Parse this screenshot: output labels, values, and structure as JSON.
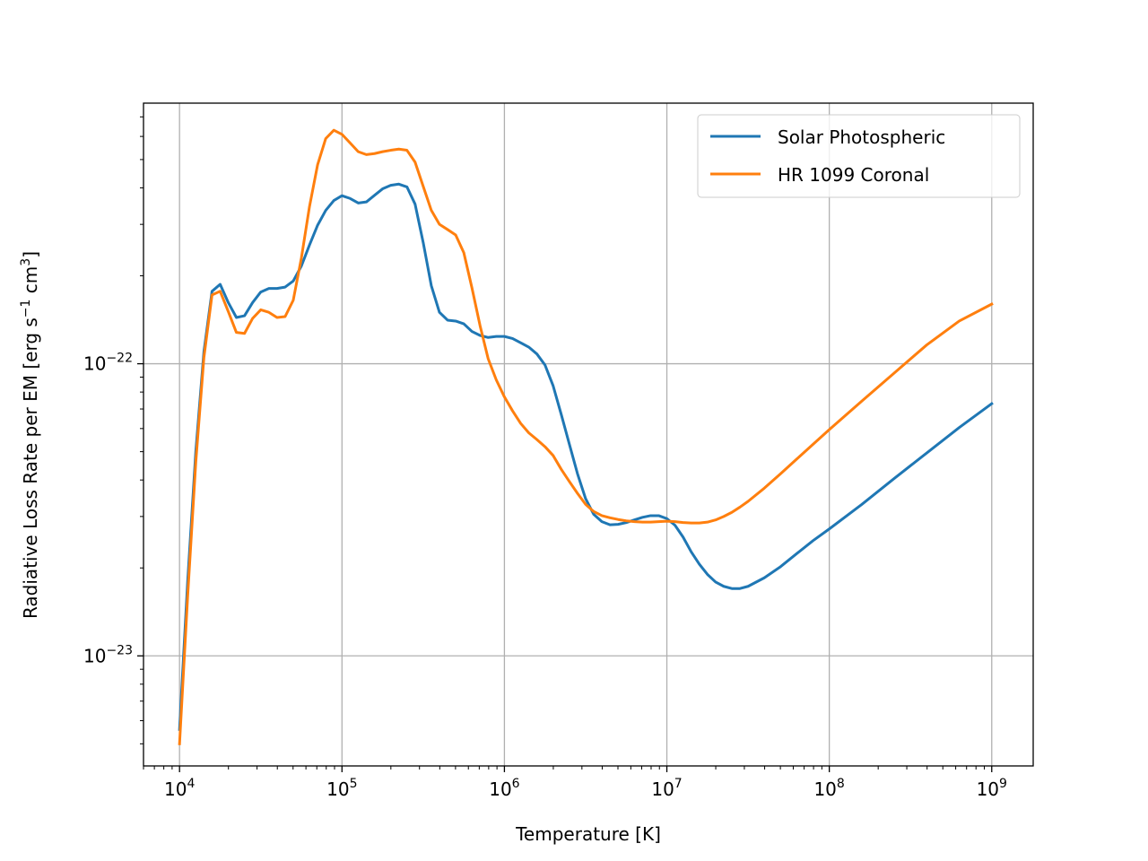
{
  "chart_data": {
    "type": "line",
    "xlabel": "Temperature [K]",
    "ylabel": {
      "main": "Radiative Loss Rate per EM [erg s",
      "exp1": "−1",
      "mid": " cm",
      "exp2": "3",
      "end": "]"
    },
    "x_scale": "log",
    "y_scale": "log",
    "xlim": [
      6000,
      1800000000
    ],
    "ylim": [
      4.2e-24,
      7.8e-22
    ],
    "grid": true,
    "legend_position": "top-right",
    "x_ticks": [
      {
        "value": 10000,
        "base": "10",
        "exp": "4"
      },
      {
        "value": 100000,
        "base": "10",
        "exp": "5"
      },
      {
        "value": 1000000,
        "base": "10",
        "exp": "6"
      },
      {
        "value": 10000000,
        "base": "10",
        "exp": "7"
      },
      {
        "value": 100000000,
        "base": "10",
        "exp": "8"
      },
      {
        "value": 1000000000,
        "base": "10",
        "exp": "9"
      }
    ],
    "y_ticks": [
      {
        "value": 1e-22,
        "base": "10",
        "exp": "−22"
      },
      {
        "value": 1e-23,
        "base": "10",
        "exp": "−23"
      }
    ],
    "series": [
      {
        "name": "Solar Photospheric",
        "color": "#1f77b4",
        "x": [
          10000,
          11220,
          12589,
          14125,
          15849,
          17783,
          19953,
          22387,
          25119,
          28184,
          31623,
          35481,
          39811,
          44668,
          50119,
          56234,
          63096,
          70795,
          79433,
          89125,
          100000,
          112202,
          125893,
          141254,
          158489,
          177828,
          199526,
          223872,
          251189,
          281838,
          316228,
          354813,
          398107,
          446684,
          501187,
          562341,
          630957,
          707946,
          794328,
          891251,
          1000000,
          1122018,
          1258925,
          1412538,
          1584893,
          1778279,
          1995262,
          2238721,
          2511886,
          2818383,
          3162278,
          3548134,
          3981072,
          4466836,
          5011872,
          5623413,
          6309573,
          7079458,
          7943282,
          8912509,
          10000000,
          11220185,
          12589254,
          14125375,
          15848932,
          17782794,
          19952623,
          22387211,
          25118864,
          28183829,
          31622777,
          39810717,
          50118723,
          63095734,
          79432823,
          100000000,
          158489319,
          251188643,
          398107171,
          630957344,
          1000000000
        ],
        "y": [
          5.6e-24,
          1.8e-23,
          5e-23,
          1.1e-22,
          1.77e-22,
          1.87e-22,
          1.62e-22,
          1.44e-22,
          1.46e-22,
          1.62e-22,
          1.76e-22,
          1.81e-22,
          1.81e-22,
          1.83e-22,
          1.92e-22,
          2.16e-22,
          2.55e-22,
          2.98e-22,
          3.35e-22,
          3.62e-22,
          3.76e-22,
          3.68e-22,
          3.55e-22,
          3.58e-22,
          3.77e-22,
          3.97e-22,
          4.08e-22,
          4.12e-22,
          4.03e-22,
          3.52e-22,
          2.6e-22,
          1.85e-22,
          1.5e-22,
          1.41e-22,
          1.4e-22,
          1.37e-22,
          1.29e-22,
          1.25e-22,
          1.23e-22,
          1.24e-22,
          1.24e-22,
          1.22e-22,
          1.18e-22,
          1.14e-22,
          1.08e-22,
          9.9e-23,
          8.4e-23,
          6.7e-23,
          5.3e-23,
          4.2e-23,
          3.45e-23,
          3.05e-23,
          2.88e-23,
          2.81e-23,
          2.82e-23,
          2.86e-23,
          2.92e-23,
          2.98e-23,
          3.02e-23,
          3.02e-23,
          2.95e-23,
          2.8e-23,
          2.55e-23,
          2.27e-23,
          2.06e-23,
          1.9e-23,
          1.79e-23,
          1.73e-23,
          1.7e-23,
          1.7e-23,
          1.73e-23,
          1.85e-23,
          2.02e-23,
          2.24e-23,
          2.48e-23,
          2.72e-23,
          3.3e-23,
          4.05e-23,
          4.95e-23,
          6.05e-23,
          7.3e-23
        ]
      },
      {
        "name": "HR 1099 Coronal",
        "color": "#ff7f0e",
        "x": [
          10000,
          11220,
          12589,
          14125,
          15849,
          17783,
          19953,
          22387,
          25119,
          28184,
          31623,
          35481,
          39811,
          44668,
          50119,
          56234,
          63096,
          70795,
          79433,
          89125,
          100000,
          112202,
          125893,
          141254,
          158489,
          177828,
          199526,
          223872,
          251189,
          281838,
          316228,
          354813,
          398107,
          446684,
          501187,
          562341,
          630957,
          707946,
          794328,
          891251,
          1000000,
          1122018,
          1258925,
          1412538,
          1584893,
          1778279,
          1995262,
          2238721,
          2511886,
          2818383,
          3162278,
          3548134,
          3981072,
          4466836,
          5011872,
          5623413,
          6309573,
          7079458,
          7943282,
          8912509,
          10000000,
          11220185,
          12589254,
          14125375,
          15848932,
          17782794,
          19952623,
          22387211,
          25118864,
          28183829,
          31622777,
          39810717,
          50118723,
          63095734,
          79432823,
          100000000,
          158489319,
          251188643,
          398107171,
          630957344,
          1000000000
        ],
        "y": [
          5e-24,
          1.6e-23,
          4.6e-23,
          1.05e-22,
          1.72e-22,
          1.77e-22,
          1.51e-22,
          1.28e-22,
          1.27e-22,
          1.43e-22,
          1.53e-22,
          1.5e-22,
          1.44e-22,
          1.45e-22,
          1.65e-22,
          2.3e-22,
          3.45e-22,
          4.8e-22,
          5.9e-22,
          6.3e-22,
          6.1e-22,
          5.7e-22,
          5.32e-22,
          5.2e-22,
          5.24e-22,
          5.32e-22,
          5.38e-22,
          5.43e-22,
          5.38e-22,
          4.9e-22,
          4.05e-22,
          3.35e-22,
          3e-22,
          2.88e-22,
          2.76e-22,
          2.4e-22,
          1.82e-22,
          1.35e-22,
          1.04e-22,
          8.8e-23,
          7.7e-23,
          6.9e-23,
          6.25e-23,
          5.8e-23,
          5.5e-23,
          5.2e-23,
          4.85e-23,
          4.35e-23,
          3.95e-23,
          3.6e-23,
          3.3e-23,
          3.12e-23,
          3.02e-23,
          2.97e-23,
          2.93e-23,
          2.9e-23,
          2.88e-23,
          2.87e-23,
          2.87e-23,
          2.88e-23,
          2.89e-23,
          2.88e-23,
          2.86e-23,
          2.85e-23,
          2.85e-23,
          2.87e-23,
          2.92e-23,
          3e-23,
          3.1e-23,
          3.23e-23,
          3.38e-23,
          3.75e-23,
          4.2e-23,
          4.72e-23,
          5.3e-23,
          5.95e-23,
          7.45e-23,
          9.3e-23,
          1.16e-22,
          1.4e-22,
          1.6e-22
        ]
      }
    ]
  }
}
